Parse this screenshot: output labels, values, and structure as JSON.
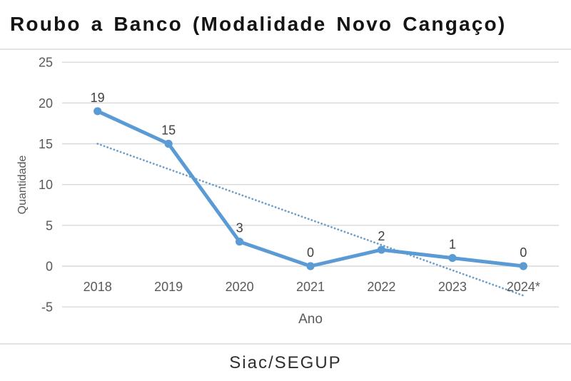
{
  "header": {
    "title": "Roubo a Banco (Modalidade Novo Cangaço)"
  },
  "footer": {
    "source": "Siac/SEGUP"
  },
  "chart_data": {
    "type": "line",
    "title": "Roubo a Banco (Modalidade Novo Cangaço)",
    "categories": [
      "2018",
      "2019",
      "2020",
      "2021",
      "2022",
      "2023",
      "2024*"
    ],
    "values": [
      19,
      15,
      3,
      0,
      2,
      1,
      0
    ],
    "data_labels": [
      19,
      15,
      3,
      0,
      2,
      1,
      0
    ],
    "xlabel": "Ano",
    "ylabel": "Quantidade",
    "ylim": [
      -5,
      25
    ],
    "yticks": [
      25,
      20,
      15,
      10,
      5,
      0,
      -5
    ],
    "grid": true,
    "legend": false,
    "trendline": {
      "style": "dotted",
      "start_category": "2018",
      "start_value": 15,
      "end_category": "2024*",
      "end_value": -3.7
    },
    "colors": {
      "series": "#5b9bd5",
      "trendline": "#6f9dc8",
      "gridline": "#d9d9d9",
      "tick_label": "#595959",
      "axis_title": "#595959",
      "data_label": "#404040"
    }
  }
}
